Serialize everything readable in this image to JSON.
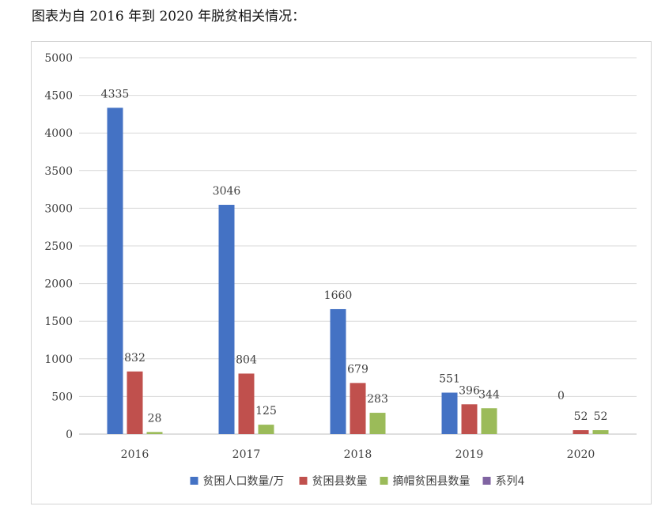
{
  "caption": "图表为自 2016 年到 2020 年脱贫相关情况：",
  "chart_data": {
    "type": "bar",
    "title": "",
    "xlabel": "",
    "ylabel": "",
    "categories": [
      "2016",
      "2017",
      "2018",
      "2019",
      "2020"
    ],
    "ylim": [
      0,
      5000
    ],
    "yticks": [
      0,
      500,
      1000,
      1500,
      2000,
      2500,
      3000,
      3500,
      4000,
      4500,
      5000
    ],
    "grid": true,
    "legend_position": "bottom",
    "series": [
      {
        "name": "贫困人口数量/万",
        "color": "#4472c4",
        "values": [
          4335,
          3046,
          1660,
          551,
          0
        ]
      },
      {
        "name": "贫困县数量",
        "color": "#c0504d",
        "values": [
          832,
          804,
          679,
          396,
          52
        ]
      },
      {
        "name": "摘帽贫困县数量",
        "color": "#9bbb59",
        "values": [
          28,
          125,
          283,
          344,
          52
        ]
      },
      {
        "name": "系列4",
        "color": "#8064a2",
        "values": [
          null,
          null,
          null,
          null,
          null
        ]
      }
    ]
  }
}
